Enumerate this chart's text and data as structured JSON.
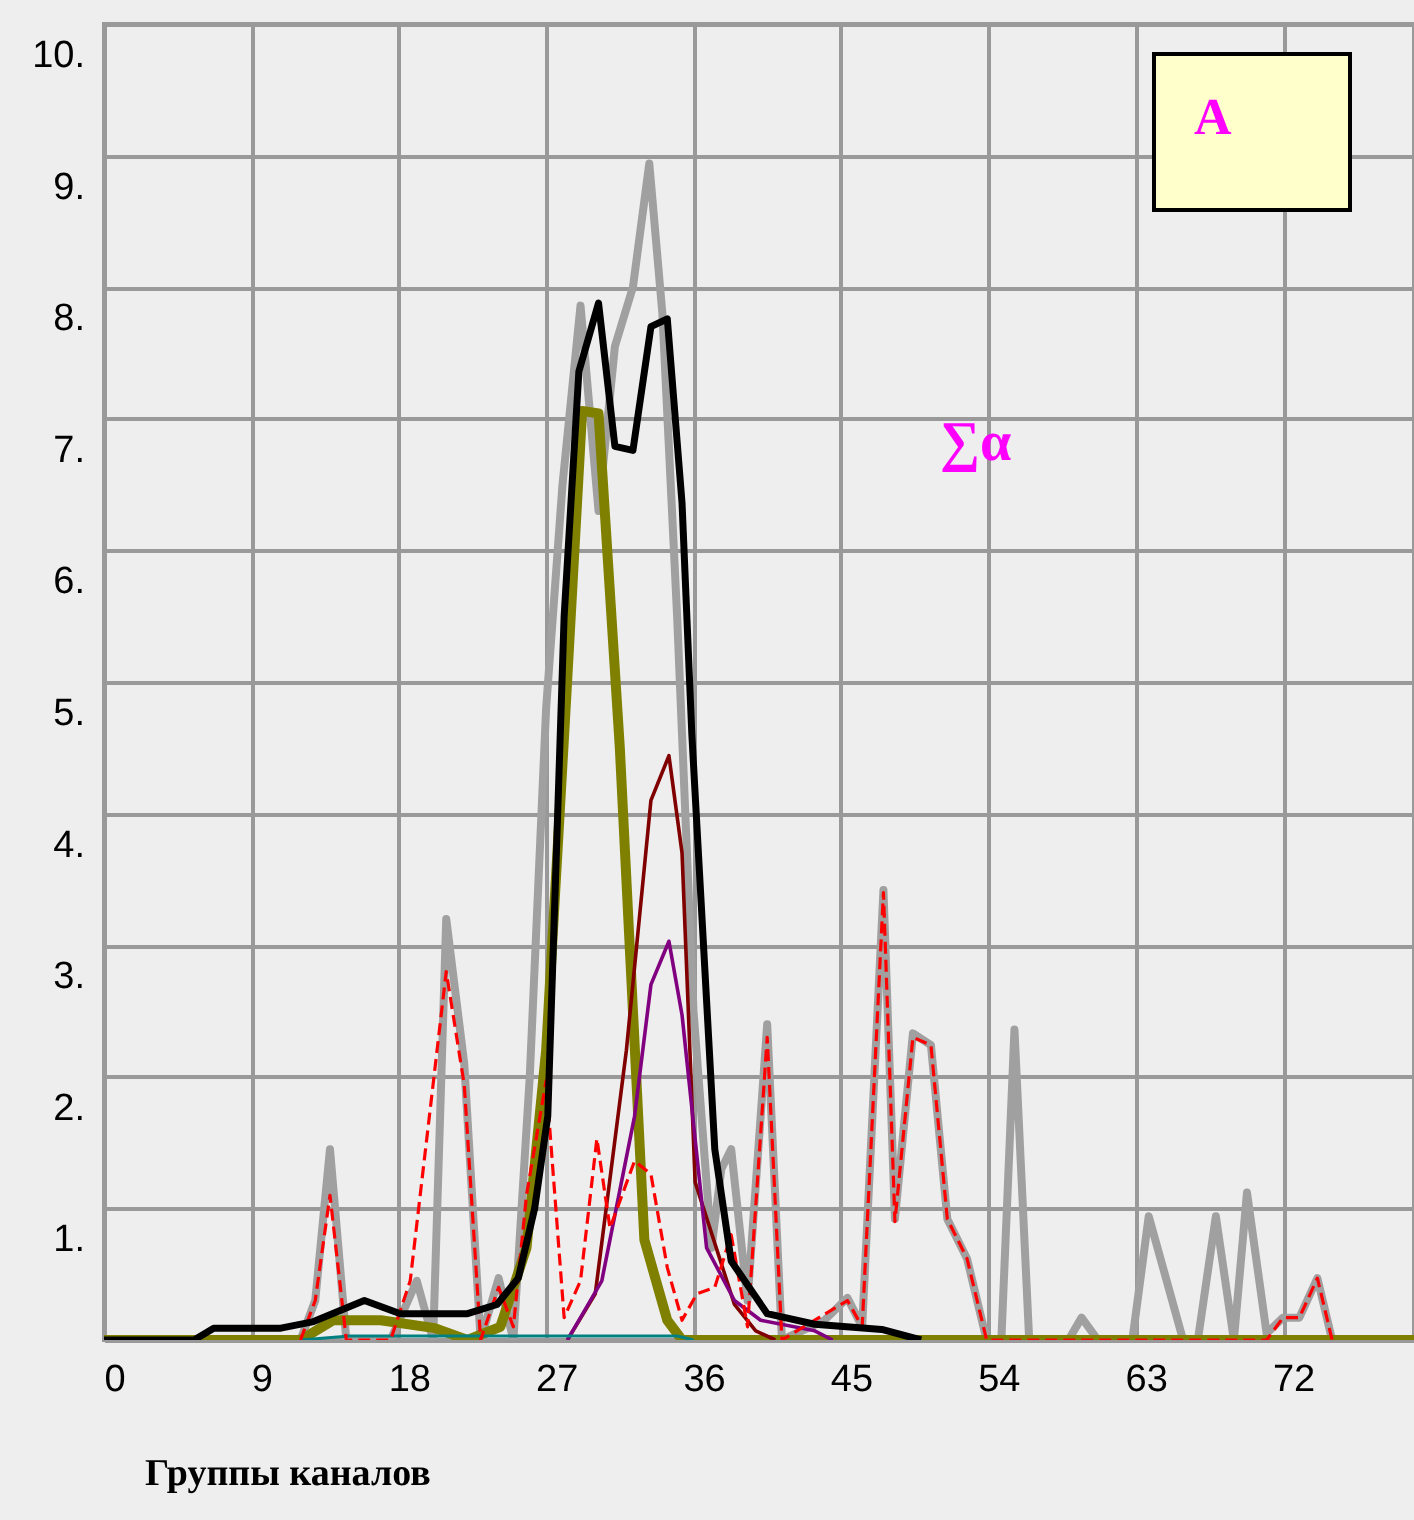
{
  "chart_data": {
    "type": "line",
    "xlabel": "Группы каналов",
    "xlim": [
      0,
      80
    ],
    "xticks": [
      0,
      9,
      18,
      27,
      36,
      45,
      54,
      63,
      72
    ],
    "ylim": [
      0,
      10
    ],
    "yticks": [
      {
        "value": 1,
        "label": "1."
      },
      {
        "value": 2,
        "label": "2."
      },
      {
        "value": 3,
        "label": "3."
      },
      {
        "value": 4,
        "label": "4."
      },
      {
        "value": 5,
        "label": "5."
      },
      {
        "value": 6,
        "label": "6."
      },
      {
        "value": 7,
        "label": "7."
      },
      {
        "value": 8,
        "label": "8."
      },
      {
        "value": 9,
        "label": "9."
      },
      {
        "value": 10,
        "label": "10."
      }
    ],
    "grid": true,
    "marker": "none",
    "annotations": [
      "A",
      "∑α"
    ],
    "series": [
      {
        "color": "#a0a0a0",
        "x": [
          12,
          12.9,
          13.8,
          14.8,
          17.5,
          19.1,
          20.1,
          20.9,
          22.0,
          23.0,
          24.1,
          25.0,
          26.0,
          27.0,
          28.0,
          29.1,
          30.2,
          31.2,
          32.3,
          33.3,
          34.1,
          35.0,
          36.0,
          37.1,
          37.7,
          38.3,
          39.3,
          40.5,
          41.4,
          44.0,
          45.4,
          46.3,
          47.6,
          48.3,
          49.4,
          50.5,
          51.5,
          52.7,
          53.9,
          54.8,
          55.6,
          56.5,
          58.9,
          59.7,
          60.7,
          62.8,
          63.8,
          65.9,
          66.8,
          67.9,
          69.0,
          69.8,
          71.0,
          72.0,
          73.0,
          74.1,
          75.0
        ],
        "values": [
          0,
          0.3,
          1.45,
          0,
          0,
          0.45,
          0,
          3.2,
          2.1,
          0,
          0.47,
          0,
          2.0,
          4.8,
          6.5,
          7.86,
          6.3,
          7.55,
          8.0,
          8.94,
          7.8,
          5.5,
          2.5,
          0.7,
          1.3,
          1.45,
          0.3,
          2.4,
          0,
          0.15,
          0.32,
          0.1,
          3.42,
          0.92,
          2.33,
          2.24,
          0.92,
          0.62,
          0,
          0,
          2.36,
          0,
          0,
          0.17,
          0,
          0,
          0.94,
          0,
          0,
          0.94,
          0,
          1.12,
          0.05,
          0.17,
          0.17,
          0.47,
          0
        ]
      },
      {
        "color": "#808000",
        "x": [
          0,
          12,
          14.0,
          16.9,
          20.2,
          22.2,
          24.2,
          25.8,
          27.0,
          28.1,
          29.2,
          30.2,
          31.5,
          33.0,
          34.4,
          35.3,
          80
        ],
        "values": [
          0,
          0,
          0.15,
          0.15,
          0.09,
          0,
          0.1,
          0.7,
          2.2,
          4.6,
          7.06,
          7.04,
          4.5,
          0.76,
          0.15,
          0,
          0
        ]
      },
      {
        "color": "#800000",
        "x": [
          28.3,
          30.0,
          31.9,
          33.4,
          34.5,
          35.3,
          36.1,
          38.5,
          39.8,
          41.0
        ],
        "values": [
          0,
          0.35,
          2.2,
          4.1,
          4.44,
          3.7,
          1.2,
          0.27,
          0.07,
          0
        ]
      },
      {
        "color": "#800080",
        "x": [
          28.3,
          29.1,
          30.4,
          32.4,
          33.4,
          34.5,
          35.3,
          36.8,
          38.5,
          40.1,
          43.4,
          44.5
        ],
        "values": [
          0,
          0.17,
          0.45,
          1.7,
          2.7,
          3.03,
          2.47,
          0.7,
          0.3,
          0.15,
          0.07,
          0
        ]
      },
      {
        "color": "#008080",
        "x": [
          12,
          15,
          35,
          36
        ],
        "values": [
          0,
          0.03,
          0.03,
          0
        ]
      },
      {
        "color": "#ff0000",
        "line_style": "dashed",
        "x": [
          12,
          12.9,
          13.8,
          14.8,
          17.5,
          18.7,
          20.9,
          22.0,
          23.0,
          24.1,
          25.0,
          25.8,
          27.0,
          28.1,
          29.1,
          30.1,
          30.9,
          32.4,
          33.4,
          34.4,
          35.3,
          36.2,
          37.3,
          38.3,
          39.3,
          40.5,
          41.4,
          45.4,
          46.3,
          47.6,
          48.3,
          49.4,
          50.5,
          51.5,
          52.7,
          53.9,
          71.0,
          72.0,
          73.0,
          74.1,
          75.0
        ],
        "values": [
          0,
          0.3,
          1.1,
          0,
          0,
          0.45,
          2.8,
          1.94,
          0,
          0.4,
          0.1,
          1.1,
          1.97,
          0.17,
          0.45,
          1.53,
          0.85,
          1.36,
          1.26,
          0.55,
          0.15,
          0.35,
          0.4,
          0.8,
          0.1,
          2.3,
          0,
          0.3,
          0.1,
          3.4,
          0.9,
          2.3,
          2.24,
          0.92,
          0.62,
          0,
          0,
          0.17,
          0.17,
          0.47,
          0
        ]
      },
      {
        "color": "#000000",
        "x": [
          0,
          5.5,
          6.7,
          10.8,
          12.8,
          15.9,
          18.1,
          22.2,
          24.0,
          25.3,
          26.3,
          27.1,
          28.1,
          29.0,
          30.2,
          31.2,
          32.3,
          33.4,
          34.4,
          35.3,
          35.9,
          37.3,
          38.3,
          40.5,
          43.4,
          47.5,
          49.9
        ],
        "values": [
          0,
          0,
          0.09,
          0.09,
          0.14,
          0.3,
          0.2,
          0.2,
          0.27,
          0.47,
          1.0,
          1.7,
          5.5,
          7.36,
          7.88,
          6.79,
          6.76,
          7.7,
          7.76,
          6.36,
          4.6,
          1.45,
          0.6,
          0.2,
          0.12,
          0.08,
          0
        ]
      }
    ]
  }
}
